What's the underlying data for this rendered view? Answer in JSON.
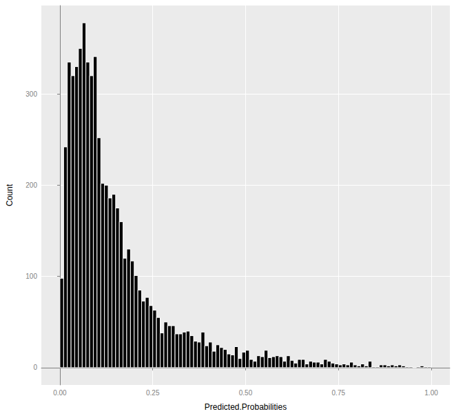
{
  "chart_data": {
    "type": "histogram",
    "xlabel": "Predicted.Probabilities",
    "ylabel": "Count",
    "bins": [
      0,
      0.01,
      0.02,
      0.03,
      0.04,
      0.05,
      0.06,
      0.07,
      0.08,
      0.09,
      0.1,
      0.11,
      0.12,
      0.13,
      0.14,
      0.15,
      0.16,
      0.17,
      0.18,
      0.19,
      0.2,
      0.21,
      0.22,
      0.23,
      0.24,
      0.25,
      0.26,
      0.27,
      0.28,
      0.29,
      0.3,
      0.31,
      0.32,
      0.33,
      0.34,
      0.35,
      0.36,
      0.37,
      0.38,
      0.39,
      0.4,
      0.41,
      0.42,
      0.43,
      0.44,
      0.45,
      0.46,
      0.47,
      0.48,
      0.49,
      0.5,
      0.51,
      0.52,
      0.53,
      0.54,
      0.55,
      0.56,
      0.57,
      0.58,
      0.59,
      0.6,
      0.61,
      0.62,
      0.63,
      0.64,
      0.65,
      0.66,
      0.67,
      0.68,
      0.69,
      0.7,
      0.71,
      0.72,
      0.73,
      0.74,
      0.75,
      0.76,
      0.77,
      0.78,
      0.79,
      0.8,
      0.81,
      0.82,
      0.83,
      0.84,
      0.85,
      0.86,
      0.87,
      0.88,
      0.89,
      0.9,
      0.91,
      0.92,
      0.93,
      0.94,
      0.95,
      0.96,
      0.97,
      0.98,
      0.99,
      1
    ],
    "values": [
      98,
      242,
      335,
      320,
      330,
      350,
      378,
      335,
      320,
      341,
      252,
      202,
      200,
      186,
      190,
      175,
      160,
      120,
      130,
      117,
      101,
      85,
      73,
      77,
      68,
      63,
      55,
      38,
      50,
      46,
      46,
      37,
      37,
      39,
      40,
      35,
      29,
      28,
      39,
      24,
      28,
      18,
      25,
      22,
      20,
      15,
      14,
      23,
      10,
      17,
      19,
      9,
      7,
      13,
      12,
      19,
      11,
      12,
      13,
      12,
      7,
      13,
      8,
      5,
      9,
      9,
      4,
      7,
      6,
      6,
      4,
      9,
      7,
      5,
      4,
      3,
      4,
      3,
      6,
      3,
      2,
      4,
      2,
      7,
      1,
      1,
      3,
      3,
      2,
      3,
      2,
      3,
      2,
      1,
      1,
      0,
      1,
      2,
      1,
      1
    ],
    "color": "#000000",
    "xlim": [
      -0.05,
      1.05
    ],
    "ylim": [
      -19,
      397
    ],
    "xticks": [
      {
        "value": 0,
        "label": "0.00"
      },
      {
        "value": 0.25,
        "label": "0.25"
      },
      {
        "value": 0.5,
        "label": "0.50"
      },
      {
        "value": 0.75,
        "label": "0.75"
      },
      {
        "value": 1,
        "label": "1.00"
      }
    ],
    "yticks": [
      0,
      100,
      200,
      300
    ],
    "grid": true
  }
}
